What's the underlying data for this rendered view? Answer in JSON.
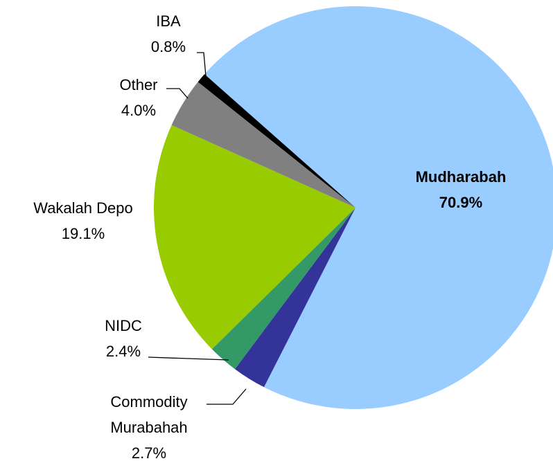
{
  "chart_data": {
    "type": "pie",
    "categories": [
      "Mudharabah",
      "Commodity Murabahah",
      "NIDC",
      "Wakalah Depo",
      "Other",
      "IBA"
    ],
    "values": [
      70.9,
      2.7,
      2.4,
      19.1,
      4.0,
      0.8
    ],
    "value_labels": [
      "70.9%",
      "2.7%",
      "2.4%",
      "19.1%",
      "4.0%",
      "0.8%"
    ],
    "colors": [
      "#99ccff",
      "#333399",
      "#339966",
      "#99cc00",
      "#808080",
      "#000000"
    ]
  }
}
